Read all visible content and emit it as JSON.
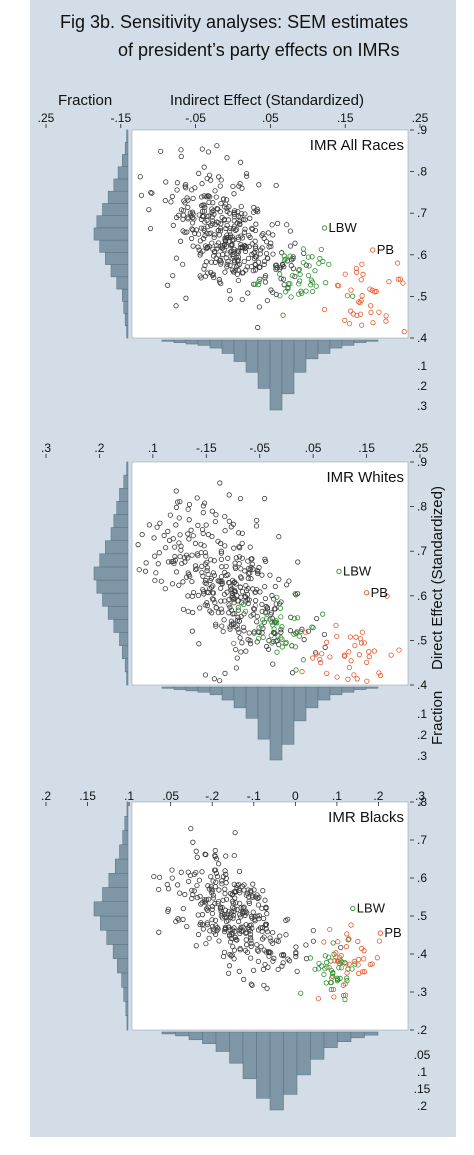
{
  "figure": {
    "title_line1": "Fig 3b. Sensitivity analyses: SEM estimates",
    "title_line2": "of president’s party effects on IMRs",
    "x_axis_title": "Indirect Effect (Standardized)",
    "y_axis_title": "Direct Effect (Standardized)",
    "hist_axis_title": "Fraction",
    "colors": {
      "background": "#d2dde7",
      "plot_area": "#ffffff",
      "points_default": "#3a3a3a",
      "points_lbw": "#2a8f2a",
      "points_pb": "#e8572a",
      "histogram_fill": "#7e96a6",
      "histogram_stroke": "#55707f"
    }
  },
  "chart_data": [
    {
      "type": "scatter",
      "title": "IMR All Races",
      "xlim": [
        -0.18,
        0.25
      ],
      "ylim": [
        0.38,
        0.9
      ],
      "x_ticks": [
        ".25",
        "-.15",
        "-.05",
        ".05",
        ".15",
        ".25"
      ],
      "y_ticks": [
        ".9",
        ".8",
        ".7",
        ".6",
        ".5",
        ".4"
      ],
      "x_hist_ticks": [
        ".3",
        ".2",
        ".1",
        ".3",
        ".2",
        ".1",
        "-.25"
      ],
      "y_hist_ticks": [
        ".1",
        ".2",
        ".3"
      ],
      "annotations": [
        {
          "text": "LBW",
          "x": 0.12,
          "y": 0.655,
          "series": "LBW"
        },
        {
          "text": "PB",
          "x": 0.195,
          "y": 0.6,
          "series": "PB"
        }
      ],
      "series": [
        {
          "name": "default",
          "color": "#3a3a3a",
          "clusters": [
            {
              "cx": -0.03,
              "cy": 0.63,
              "sx": 0.03,
              "sy": 0.05,
              "n": 160
            },
            {
              "cx": -0.07,
              "cy": 0.69,
              "sx": 0.02,
              "sy": 0.03,
              "n": 50
            },
            {
              "cx": 0.02,
              "cy": 0.57,
              "sx": 0.03,
              "sy": 0.04,
              "n": 70
            },
            {
              "cx": -0.06,
              "cy": 0.76,
              "sx": 0.05,
              "sy": 0.05,
              "n": 60
            },
            {
              "cx": -0.03,
              "cy": 0.55,
              "sx": 0.05,
              "sy": 0.05,
              "n": 50
            }
          ]
        },
        {
          "name": "LBW",
          "color": "#2a8f2a",
          "clusters": [
            {
              "cx": 0.08,
              "cy": 0.53,
              "sx": 0.03,
              "sy": 0.04,
              "n": 45
            }
          ]
        },
        {
          "name": "PB",
          "color": "#e8572a",
          "clusters": [
            {
              "cx": 0.19,
              "cy": 0.48,
              "sx": 0.03,
              "sy": 0.04,
              "n": 40
            }
          ]
        }
      ],
      "marginal_y": [
        0.005,
        0.01,
        0.015,
        0.02,
        0.04,
        0.06,
        0.08,
        0.1,
        0.12,
        0.11,
        0.09,
        0.07,
        0.05,
        0.035,
        0.02,
        0.01,
        0.005
      ],
      "marginal_x": [
        0.005,
        0.01,
        0.015,
        0.02,
        0.03,
        0.05,
        0.08,
        0.12,
        0.18,
        0.26,
        0.2,
        0.12,
        0.07,
        0.05,
        0.03,
        0.02,
        0.01,
        0.005
      ]
    },
    {
      "type": "scatter",
      "title": "IMR Whites",
      "xlim": [
        -0.15,
        0.25
      ],
      "ylim": [
        0.38,
        0.9
      ],
      "x_ticks": [
        ".3",
        ".2",
        ".1",
        "-.15",
        "-.05",
        ".05",
        ".15",
        ".25"
      ],
      "y_ticks": [
        ".9",
        ".8",
        ".7",
        ".6",
        ".5",
        ".4"
      ],
      "y_hist_ticks": [
        ".1",
        ".2",
        ".3"
      ],
      "annotations": [
        {
          "text": "LBW",
          "x": 0.15,
          "y": 0.645,
          "series": "LBW"
        },
        {
          "text": "PB",
          "x": 0.19,
          "y": 0.595,
          "series": "PB"
        }
      ],
      "series": [
        {
          "name": "default",
          "color": "#3a3a3a",
          "clusters": [
            {
              "cx": -0.0,
              "cy": 0.6,
              "sx": 0.03,
              "sy": 0.05,
              "n": 180
            },
            {
              "cx": -0.06,
              "cy": 0.72,
              "sx": 0.05,
              "sy": 0.06,
              "n": 80
            },
            {
              "cx": 0.04,
              "cy": 0.5,
              "sx": 0.04,
              "sy": 0.05,
              "n": 70
            },
            {
              "cx": -0.09,
              "cy": 0.66,
              "sx": 0.04,
              "sy": 0.04,
              "n": 40
            }
          ]
        },
        {
          "name": "LBW",
          "color": "#2a8f2a",
          "clusters": [
            {
              "cx": 0.06,
              "cy": 0.52,
              "sx": 0.03,
              "sy": 0.04,
              "n": 45
            }
          ]
        },
        {
          "name": "PB",
          "color": "#e8572a",
          "clusters": [
            {
              "cx": 0.17,
              "cy": 0.45,
              "sx": 0.03,
              "sy": 0.04,
              "n": 40
            }
          ]
        }
      ],
      "marginal_y": [
        0.005,
        0.01,
        0.02,
        0.03,
        0.05,
        0.07,
        0.09,
        0.11,
        0.12,
        0.1,
        0.08,
        0.06,
        0.05,
        0.04,
        0.03,
        0.015,
        0.005
      ],
      "marginal_x": [
        0.005,
        0.01,
        0.015,
        0.02,
        0.03,
        0.05,
        0.08,
        0.12,
        0.2,
        0.28,
        0.22,
        0.13,
        0.08,
        0.05,
        0.03,
        0.02,
        0.01,
        0.005
      ]
    },
    {
      "type": "scatter",
      "title": "IMR Blacks",
      "xlim": [
        -0.2,
        0.3
      ],
      "ylim": [
        0.2,
        0.8
      ],
      "x_ticks": [
        ".2",
        ".15",
        ".1",
        ".05",
        "-.2",
        "-.1",
        "0",
        ".1",
        ".2",
        ".3"
      ],
      "y_ticks": [
        ".8",
        ".7",
        ".6",
        ".5",
        ".4",
        ".3",
        ".2"
      ],
      "y_hist_ticks": [
        ".05",
        ".1",
        ".15",
        ".2"
      ],
      "annotations": [
        {
          "text": "LBW",
          "x": 0.2,
          "y": 0.52,
          "series": "LBW"
        },
        {
          "text": "PB",
          "x": 0.25,
          "y": 0.455,
          "series": "PB"
        }
      ],
      "series": [
        {
          "name": "default",
          "color": "#3a3a3a",
          "clusters": [
            {
              "cx": -0.01,
              "cy": 0.5,
              "sx": 0.04,
              "sy": 0.05,
              "n": 200
            },
            {
              "cx": -0.07,
              "cy": 0.6,
              "sx": 0.04,
              "sy": 0.06,
              "n": 70
            },
            {
              "cx": 0.05,
              "cy": 0.4,
              "sx": 0.04,
              "sy": 0.04,
              "n": 60
            }
          ]
        },
        {
          "name": "LBW",
          "color": "#2a8f2a",
          "clusters": [
            {
              "cx": 0.17,
              "cy": 0.36,
              "sx": 0.02,
              "sy": 0.03,
              "n": 40
            }
          ]
        },
        {
          "name": "PB",
          "color": "#e8572a",
          "clusters": [
            {
              "cx": 0.19,
              "cy": 0.38,
              "sx": 0.03,
              "sy": 0.04,
              "n": 40
            }
          ]
        }
      ],
      "marginal_y": [
        0.005,
        0.01,
        0.02,
        0.03,
        0.05,
        0.07,
        0.1,
        0.13,
        0.16,
        0.12,
        0.09,
        0.06,
        0.04,
        0.025,
        0.015,
        0.005
      ],
      "marginal_x": [
        0.005,
        0.01,
        0.02,
        0.03,
        0.05,
        0.08,
        0.12,
        0.17,
        0.2,
        0.16,
        0.11,
        0.07,
        0.04,
        0.025,
        0.015,
        0.008
      ]
    }
  ]
}
